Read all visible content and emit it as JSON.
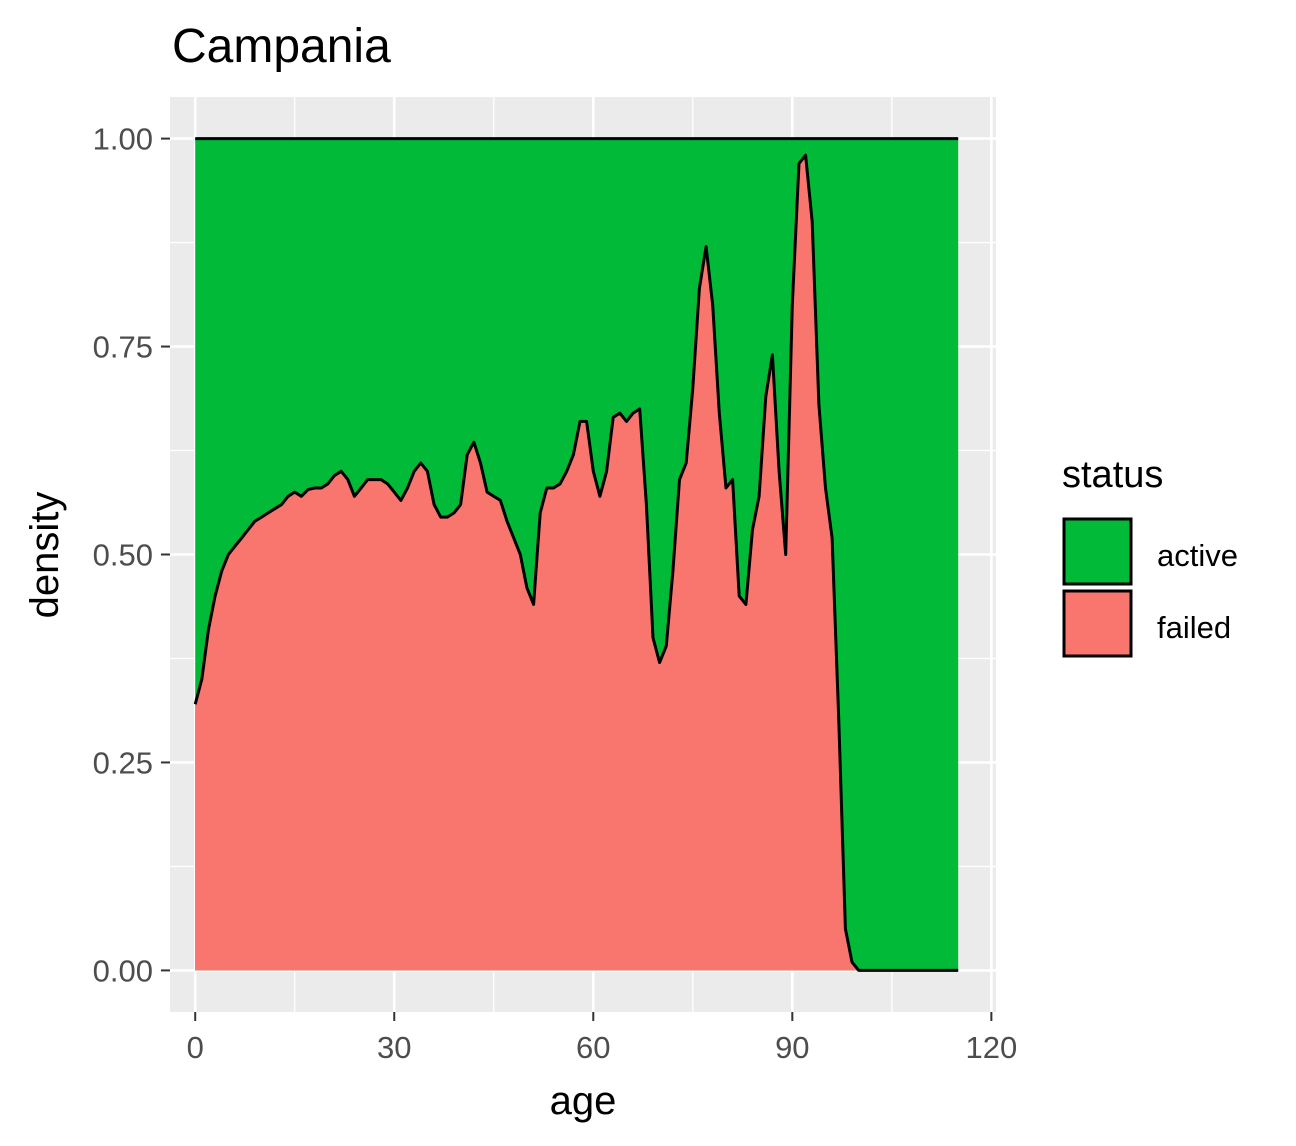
{
  "chart_data": {
    "type": "area",
    "stacked": "fill",
    "title": "Campania",
    "xlabel": "age",
    "ylabel": "density",
    "xlim": [
      -3.8,
      120.7
    ],
    "ylim": [
      -0.05,
      1.05
    ],
    "x_ticks": [
      0,
      30,
      60,
      90,
      120
    ],
    "x_tick_labels": [
      "0",
      "30",
      "60",
      "90",
      "120"
    ],
    "y_ticks": [
      0,
      0.25,
      0.5,
      0.75,
      1
    ],
    "y_tick_labels": [
      "0.00",
      "0.25",
      "0.50",
      "0.75",
      "1.00"
    ],
    "grid": true,
    "legend": {
      "title": "status",
      "position": "right",
      "entries": [
        {
          "label": "active",
          "color": "#00BA38"
        },
        {
          "label": "failed",
          "color": "#F8766D"
        }
      ]
    },
    "series": [
      {
        "name": "active",
        "color": "#00BA38"
      },
      {
        "name": "failed",
        "color": "#F8766D",
        "x": [
          0,
          1,
          2,
          3,
          4,
          5,
          6,
          7,
          8,
          9,
          10,
          11,
          12,
          13,
          14,
          15,
          16,
          17,
          18,
          19,
          20,
          21,
          22,
          23,
          24,
          25,
          26,
          27,
          28,
          29,
          30,
          31,
          32,
          33,
          34,
          35,
          36,
          37,
          38,
          39,
          40,
          41,
          42,
          43,
          44,
          45,
          46,
          47,
          48,
          49,
          50,
          51,
          52,
          53,
          54,
          55,
          56,
          57,
          58,
          59,
          60,
          61,
          62,
          63,
          64,
          65,
          66,
          67,
          68,
          69,
          70,
          71,
          72,
          73,
          74,
          75,
          76,
          77,
          78,
          79,
          80,
          81,
          82,
          83,
          84,
          85,
          86,
          87,
          88,
          89,
          90,
          91,
          92,
          93,
          94,
          95,
          96,
          97,
          98,
          99,
          100,
          101,
          102,
          103,
          104,
          105,
          107,
          110,
          115
        ],
        "y": [
          0.32,
          0.35,
          0.41,
          0.45,
          0.48,
          0.5,
          0.51,
          0.52,
          0.53,
          0.54,
          0.545,
          0.55,
          0.555,
          0.56,
          0.57,
          0.575,
          0.57,
          0.578,
          0.58,
          0.58,
          0.585,
          0.595,
          0.6,
          0.59,
          0.57,
          0.58,
          0.59,
          0.59,
          0.59,
          0.585,
          0.575,
          0.565,
          0.58,
          0.6,
          0.61,
          0.6,
          0.56,
          0.545,
          0.545,
          0.55,
          0.56,
          0.62,
          0.635,
          0.61,
          0.575,
          0.57,
          0.565,
          0.54,
          0.52,
          0.5,
          0.46,
          0.44,
          0.55,
          0.58,
          0.58,
          0.585,
          0.6,
          0.62,
          0.66,
          0.66,
          0.6,
          0.57,
          0.6,
          0.665,
          0.67,
          0.66,
          0.67,
          0.675,
          0.56,
          0.4,
          0.37,
          0.39,
          0.48,
          0.59,
          0.61,
          0.7,
          0.82,
          0.87,
          0.8,
          0.67,
          0.58,
          0.59,
          0.45,
          0.44,
          0.53,
          0.57,
          0.69,
          0.74,
          0.6,
          0.5,
          0.8,
          0.97,
          0.98,
          0.9,
          0.68,
          0.58,
          0.52,
          0.3,
          0.05,
          0.01,
          0.0,
          0.0,
          0.0,
          0.0,
          0.0,
          0.0,
          0.0,
          0.0,
          0.0
        ]
      }
    ]
  }
}
